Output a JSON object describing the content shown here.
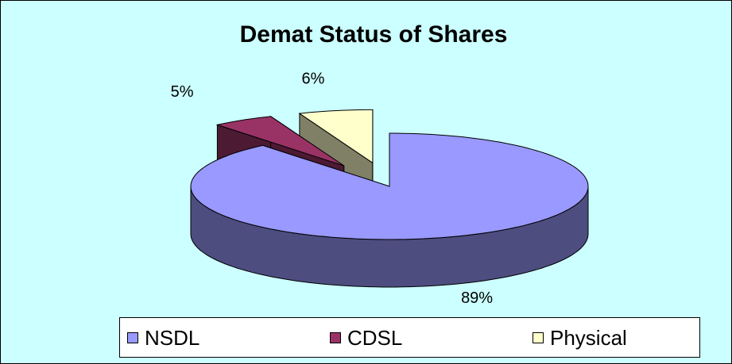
{
  "chart_data": {
    "type": "pie",
    "title": "Demat Status of Shares",
    "categories": [
      "NSDL",
      "CDSL",
      "Physical"
    ],
    "values": [
      89,
      5,
      6
    ],
    "value_labels": [
      "89%",
      "5%",
      "6%"
    ],
    "colors": [
      "#9999ff",
      "#993366",
      "#ffffcc"
    ],
    "legend": "bottom"
  }
}
